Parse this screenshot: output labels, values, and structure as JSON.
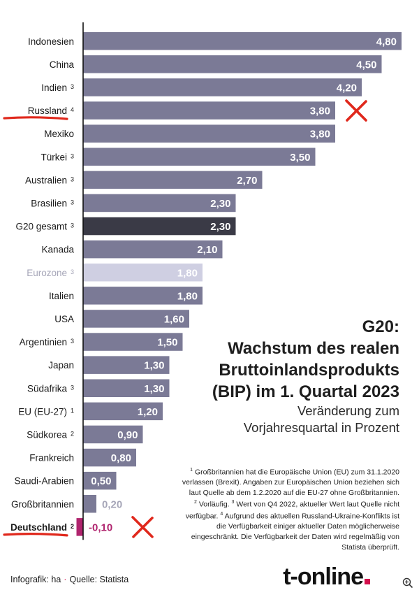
{
  "chart_data": {
    "type": "bar",
    "orientation": "horizontal",
    "categories": [
      {
        "label": "Indonesien",
        "footnote": ""
      },
      {
        "label": "China",
        "footnote": ""
      },
      {
        "label": "Indien",
        "footnote": "3"
      },
      {
        "label": "Russland",
        "footnote": "4"
      },
      {
        "label": "Mexiko",
        "footnote": ""
      },
      {
        "label": "Türkei",
        "footnote": "3"
      },
      {
        "label": "Australien",
        "footnote": "3"
      },
      {
        "label": "Brasilien",
        "footnote": "3"
      },
      {
        "label": "G20 gesamt",
        "footnote": "3"
      },
      {
        "label": "Kanada",
        "footnote": ""
      },
      {
        "label": "Eurozone",
        "footnote": "3"
      },
      {
        "label": "Italien",
        "footnote": ""
      },
      {
        "label": "USA",
        "footnote": ""
      },
      {
        "label": "Argentinien",
        "footnote": "3"
      },
      {
        "label": "Japan",
        "footnote": ""
      },
      {
        "label": "Südafrika",
        "footnote": "3"
      },
      {
        "label": "EU (EU-27)",
        "footnote": "1"
      },
      {
        "label": "Südkorea",
        "footnote": "2"
      },
      {
        "label": "Frankreich",
        "footnote": ""
      },
      {
        "label": "Saudi-Arabien",
        "footnote": ""
      },
      {
        "label": "Großbritannien",
        "footnote": ""
      },
      {
        "label": "Deutschland",
        "footnote": "2"
      }
    ],
    "values": [
      4.8,
      4.5,
      4.2,
      3.8,
      3.8,
      3.5,
      2.7,
      2.3,
      2.3,
      2.1,
      1.8,
      1.8,
      1.6,
      1.5,
      1.3,
      1.3,
      1.2,
      0.9,
      0.8,
      0.5,
      0.2,
      -0.1
    ],
    "value_labels": [
      "4,80",
      "4,50",
      "4,20",
      "3,80",
      "3,80",
      "3,50",
      "2,70",
      "2,30",
      "2,30",
      "2,10",
      "1,80",
      "1,80",
      "1,60",
      "1,50",
      "1,30",
      "1,30",
      "1,20",
      "0,90",
      "0,80",
      "0,50",
      "0,20",
      "-0,10"
    ],
    "xlim": [
      0,
      4.8
    ],
    "highlight": {
      "G20 gesamt": "dark",
      "Eurozone": "light",
      "Deutschland": "negative"
    },
    "marked_categories": [
      "Russland",
      "Deutschland"
    ],
    "colors": {
      "bar": "#7b7a96",
      "bar_dark": "#3a3a46",
      "bar_light": "#cfcfe2",
      "negative": "#b0246e",
      "label_light": "#a6a6b8",
      "marker": "#e0281c",
      "axis": "#111111"
    }
  },
  "title": {
    "lines": [
      "G20:",
      "Wachstum des realen",
      "Bruttoinlandsprodukts",
      "(BIP) im 1. Quartal 2023"
    ],
    "subtitle_lines": [
      "Veränderung zum",
      "Vorjahresquartal in Prozent"
    ]
  },
  "footnotes": [
    {
      "num": "1",
      "text": "Großbritannien hat die Europäische Union (EU) zum 31.1.2020 verlassen (Brexit). Angaben zur Europäischen Union beziehen sich laut Quelle ab dem 1.2.2020 auf die EU-27 ohne Großbritannien."
    },
    {
      "num": "2",
      "text": "Vorläufig."
    },
    {
      "num": "3",
      "text": "Wert von Q4 2022, aktueller Wert laut Quelle nicht verfügbar."
    },
    {
      "num": "4",
      "text": "Aufgrund des aktuellen Russland-Ukraine-Konflikts ist die Verfügbarkeit einiger aktueller Daten möglicherweise eingeschränkt. Die Verfügbarkeit der Daten wird regelmäßig von Statista überprüft."
    }
  ],
  "credit": {
    "infografik": "Infografik: ha",
    "separator": "·",
    "source": "Quelle: Statista"
  },
  "logo": {
    "text": "t-online",
    "accent": "#d30f4c"
  },
  "icons": {
    "zoom": "zoom-in-icon"
  }
}
